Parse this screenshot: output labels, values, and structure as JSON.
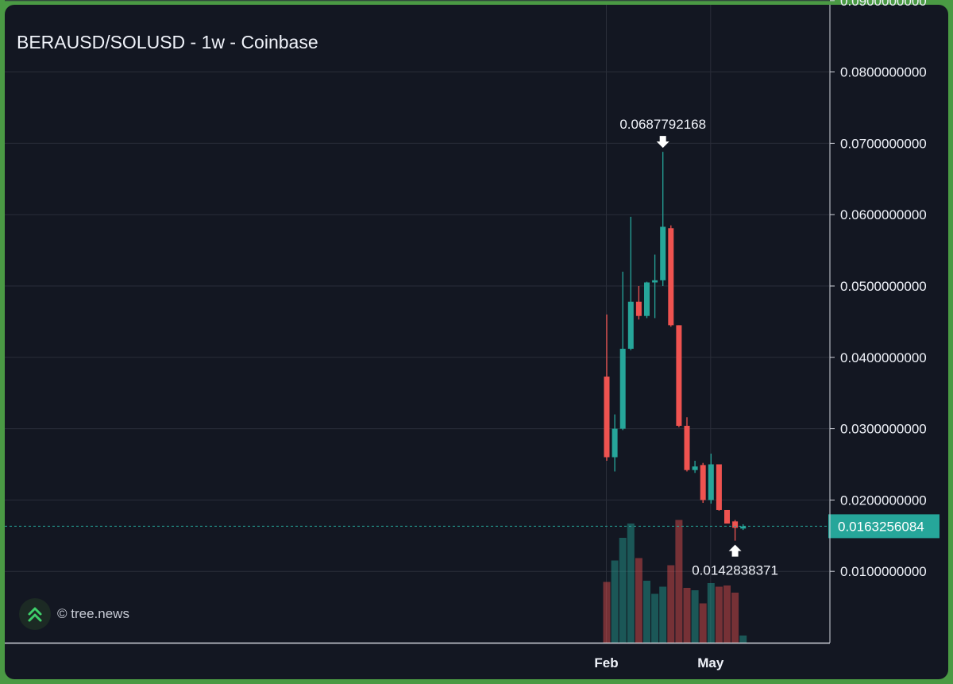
{
  "title": "BERAUSD/SOLUSD - 1w - Coinbase",
  "watermark": "© tree.news",
  "colors": {
    "background": "#131722",
    "up": "#26a69a",
    "down": "#ef5350",
    "grid": "#2a2e39",
    "text": "#f0f3fa",
    "frame": "#4a9a44"
  },
  "chart_data": {
    "type": "candlestick",
    "ylim": [
      0,
      0.09
    ],
    "y_ticks": [
      "0.0900000000",
      "0.0800000000",
      "0.0700000000",
      "0.0600000000",
      "0.0500000000",
      "0.0400000000",
      "0.0300000000",
      "0.0200000000",
      "0.0100000000"
    ],
    "x_ticks": [
      "Feb",
      "May"
    ],
    "x_tick_positions": [
      0,
      13
    ],
    "grid": true,
    "last_price": "0.0163256084",
    "high_marker": {
      "index": 7,
      "label": "0.0687792168"
    },
    "low_marker": {
      "index": 16,
      "label": "0.0142838371"
    },
    "candles": [
      {
        "o": 0.0373,
        "h": 0.046,
        "l": 0.0255,
        "c": 0.026,
        "v": 0.51
      },
      {
        "o": 0.026,
        "h": 0.032,
        "l": 0.024,
        "c": 0.03,
        "v": 0.69
      },
      {
        "o": 0.03,
        "h": 0.052,
        "l": 0.0298,
        "c": 0.0412,
        "v": 0.88
      },
      {
        "o": 0.0412,
        "h": 0.0597,
        "l": 0.041,
        "c": 0.0478,
        "v": 1.0
      },
      {
        "o": 0.0478,
        "h": 0.05,
        "l": 0.0453,
        "c": 0.0458,
        "v": 0.71
      },
      {
        "o": 0.0458,
        "h": 0.0506,
        "l": 0.0455,
        "c": 0.0505,
        "v": 0.52
      },
      {
        "o": 0.0505,
        "h": 0.0544,
        "l": 0.0455,
        "c": 0.0508,
        "v": 0.41
      },
      {
        "o": 0.0508,
        "h": 0.0688,
        "l": 0.05,
        "c": 0.0583,
        "v": 0.47
      },
      {
        "o": 0.0581,
        "h": 0.0585,
        "l": 0.0443,
        "c": 0.0445,
        "v": 0.65
      },
      {
        "o": 0.0445,
        "h": 0.0445,
        "l": 0.0302,
        "c": 0.0304,
        "v": 1.03
      },
      {
        "o": 0.0304,
        "h": 0.0316,
        "l": 0.024,
        "c": 0.0242,
        "v": 0.46
      },
      {
        "o": 0.0242,
        "h": 0.0255,
        "l": 0.0238,
        "c": 0.0247,
        "v": 0.44
      },
      {
        "o": 0.0249,
        "h": 0.0252,
        "l": 0.0196,
        "c": 0.02,
        "v": 0.33
      },
      {
        "o": 0.02,
        "h": 0.0265,
        "l": 0.0195,
        "c": 0.025,
        "v": 0.5
      },
      {
        "o": 0.025,
        "h": 0.025,
        "l": 0.0185,
        "c": 0.0186,
        "v": 0.47
      },
      {
        "o": 0.0186,
        "h": 0.0186,
        "l": 0.0167,
        "c": 0.0167,
        "v": 0.48
      },
      {
        "o": 0.017,
        "h": 0.0172,
        "l": 0.0143,
        "c": 0.0161,
        "v": 0.42
      },
      {
        "o": 0.016,
        "h": 0.0166,
        "l": 0.0158,
        "c": 0.0163,
        "v": 0.06
      }
    ]
  }
}
